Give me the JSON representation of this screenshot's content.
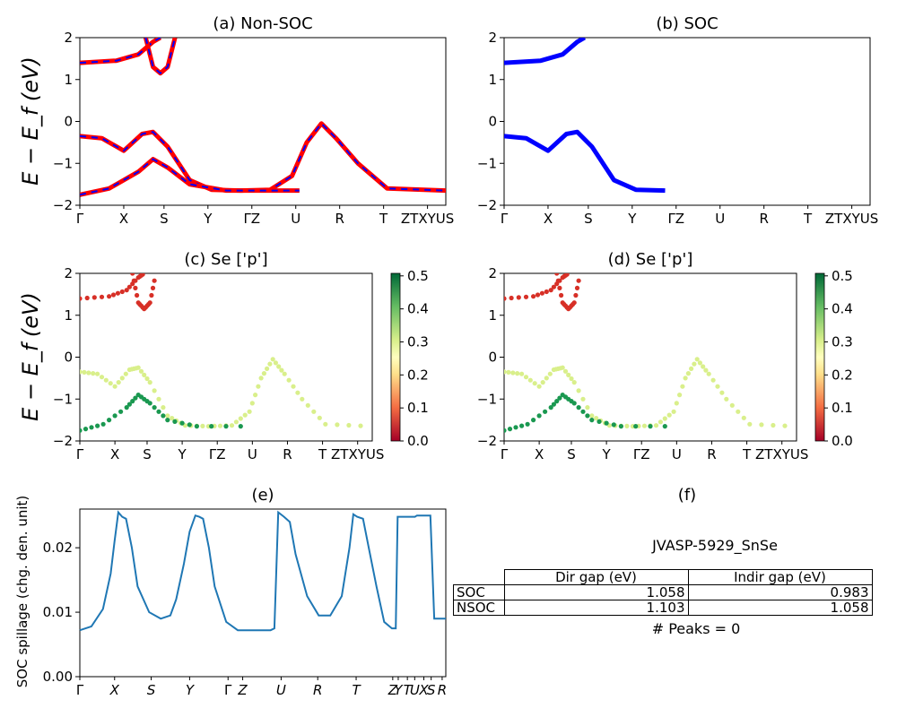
{
  "figure_title": "JVASP-5929_SnSe",
  "peaks_text": "# Peaks = 0",
  "ylabel_energy": "E − E_f (eV)",
  "kpath_labels": [
    "Γ",
    "X",
    "S",
    "Y",
    "ΓZ",
    "U",
    "R",
    "T",
    "ZTXYUS"
  ],
  "spillage_kpath_labels": [
    "Γ",
    "X",
    "S",
    "Y",
    "Γ",
    "Z",
    "U",
    "R",
    "T",
    "Z",
    "Y",
    "T",
    "U",
    "X",
    "S",
    "R"
  ],
  "colorbar_ticks": [
    "0.0",
    "0.1",
    "0.2",
    "0.3",
    "0.4",
    "0.5"
  ],
  "panels": {
    "a": {
      "title": "(a) Non-SOC"
    },
    "b": {
      "title": "(b) SOC"
    },
    "c": {
      "title": "(c)  Se ['p']"
    },
    "d": {
      "title": "(d) Se ['p']"
    },
    "e": {
      "title": "(e)",
      "ylabel": "SOC spillage (chg. den. unit)"
    },
    "f": {
      "title": "(f)"
    }
  },
  "table": {
    "headers": [
      "Dir gap (eV)",
      "Indir gap (eV)"
    ],
    "rows": [
      {
        "label": "SOC",
        "dir": "1.058",
        "indir": "0.983"
      },
      {
        "label": "NSOC",
        "dir": "1.103",
        "indir": "1.058"
      }
    ]
  },
  "colors": {
    "non_soc": "#ff0000",
    "soc": "#0000ff",
    "spillage": "#1f77b4"
  },
  "chart_data": [
    {
      "type": "line",
      "title": "(a) Non-SOC",
      "ylabel": "E − E_f (eV)",
      "ylim": [
        -2,
        2
      ],
      "yticks": [
        -2,
        -1,
        0,
        1,
        2
      ],
      "series": [
        {
          "bands": [
            [
              [
                0,
                1.4
              ],
              [
                0.5,
                1.45
              ],
              [
                0.8,
                1.6
              ],
              [
                1.0,
                1.9
              ],
              [
                1.1,
                2.0
              ]
            ],
            [
              [
                0.9,
                2.0
              ],
              [
                1.0,
                1.3
              ],
              [
                1.1,
                1.15
              ],
              [
                1.2,
                1.3
              ],
              [
                1.3,
                2.0
              ]
            ],
            [
              [
                0,
                -0.35
              ],
              [
                0.3,
                -0.4
              ],
              [
                0.6,
                -0.7
              ],
              [
                0.85,
                -0.3
              ],
              [
                1.0,
                -0.25
              ],
              [
                1.2,
                -0.6
              ],
              [
                1.5,
                -1.4
              ],
              [
                1.8,
                -1.63
              ],
              [
                2.2,
                -1.65
              ],
              [
                2.6,
                -1.63
              ],
              [
                2.9,
                -1.3
              ],
              [
                3.1,
                -0.5
              ],
              [
                3.3,
                -0.05
              ],
              [
                3.5,
                -0.4
              ],
              [
                3.8,
                -1.0
              ],
              [
                4.2,
                -1.6
              ],
              [
                5.0,
                -1.65
              ]
            ],
            [
              [
                0,
                -1.75
              ],
              [
                0.4,
                -1.6
              ],
              [
                0.8,
                -1.2
              ],
              [
                1.0,
                -0.9
              ],
              [
                1.2,
                -1.1
              ],
              [
                1.5,
                -1.5
              ],
              [
                2.0,
                -1.65
              ],
              [
                3.0,
                -1.65
              ]
            ]
          ]
        }
      ]
    },
    {
      "type": "line",
      "title": "(b) SOC",
      "ylabel": "",
      "ylim": [
        -2,
        2
      ],
      "yticks": [
        -2,
        -1,
        0,
        1,
        2
      ],
      "series": [
        {
          "bands": [
            [
              [
                0,
                1.4
              ],
              [
                0.5,
                1.45
              ],
              [
                0.8,
                1.6
              ],
              [
                1.0,
                1.9
              ],
              [
                1.1,
                2.0
              ]
            ],
            [
              [
                0,
                -0.35
              ],
              [
                0.3,
                -0.4
              ],
              [
                0.6,
                -0.7
              ],
              [
                0.85,
                -0.3
              ],
              [
                1.0,
                -0.25
              ],
              [
                1.2,
                -0.6
              ],
              [
                1.5,
                -1.4
              ],
              [
                1.8,
                -1.63
              ],
              [
                2.2,
                -1.65
              ]
            ]
          ]
        }
      ]
    },
    {
      "type": "scatter",
      "title": "(c)  Se ['p']",
      "ylabel": "E − E_f (eV)",
      "ylim": [
        -2,
        2
      ],
      "colorbar": {
        "range": [
          0.0,
          0.5
        ],
        "colormap": "RdYlGn"
      }
    },
    {
      "type": "scatter",
      "title": "(d) Se ['p']",
      "ylabel": "",
      "ylim": [
        -2,
        2
      ],
      "colorbar": {
        "range": [
          0.0,
          0.5
        ],
        "colormap": "RdYlGn"
      }
    },
    {
      "type": "line",
      "title": "(e)",
      "ylabel": "SOC spillage (chg. den. unit)",
      "ylim": [
        0.0,
        0.026
      ],
      "yticks": [
        0.0,
        0.01,
        0.02
      ],
      "yticklabels": [
        "0.00",
        "0.01",
        "0.02"
      ],
      "x": [
        0,
        0.3,
        0.6,
        0.8,
        0.9,
        1.0,
        1.1,
        1.2,
        1.35,
        1.5,
        1.8,
        2.1,
        2.35,
        2.5,
        2.7,
        2.85,
        3.0,
        3.1,
        3.2,
        3.35,
        3.5,
        3.8,
        4.1,
        4.35,
        4.6,
        4.8,
        4.95,
        5.05,
        5.15,
        5.3,
        5.45,
        5.6,
        5.9,
        6.2,
        6.5,
        6.8,
        7.0,
        7.1,
        7.2,
        7.35,
        7.5,
        7.7,
        7.9,
        8.1,
        8.2,
        8.25,
        8.5,
        8.7,
        8.75,
        9.1,
        9.2,
        9.25,
        9.5
      ],
      "values": [
        0.0072,
        0.0078,
        0.0105,
        0.016,
        0.021,
        0.0255,
        0.0248,
        0.0245,
        0.02,
        0.014,
        0.01,
        0.009,
        0.0095,
        0.012,
        0.0175,
        0.0225,
        0.025,
        0.0248,
        0.0245,
        0.02,
        0.014,
        0.0085,
        0.0072,
        0.0072,
        0.0072,
        0.0072,
        0.0072,
        0.0075,
        0.0255,
        0.0248,
        0.024,
        0.019,
        0.0125,
        0.0095,
        0.0095,
        0.0125,
        0.02,
        0.0252,
        0.0248,
        0.0245,
        0.02,
        0.014,
        0.0085,
        0.0075,
        0.0075,
        0.0248,
        0.0248,
        0.0248,
        0.025,
        0.025,
        0.009,
        0.009,
        0.009
      ]
    }
  ]
}
